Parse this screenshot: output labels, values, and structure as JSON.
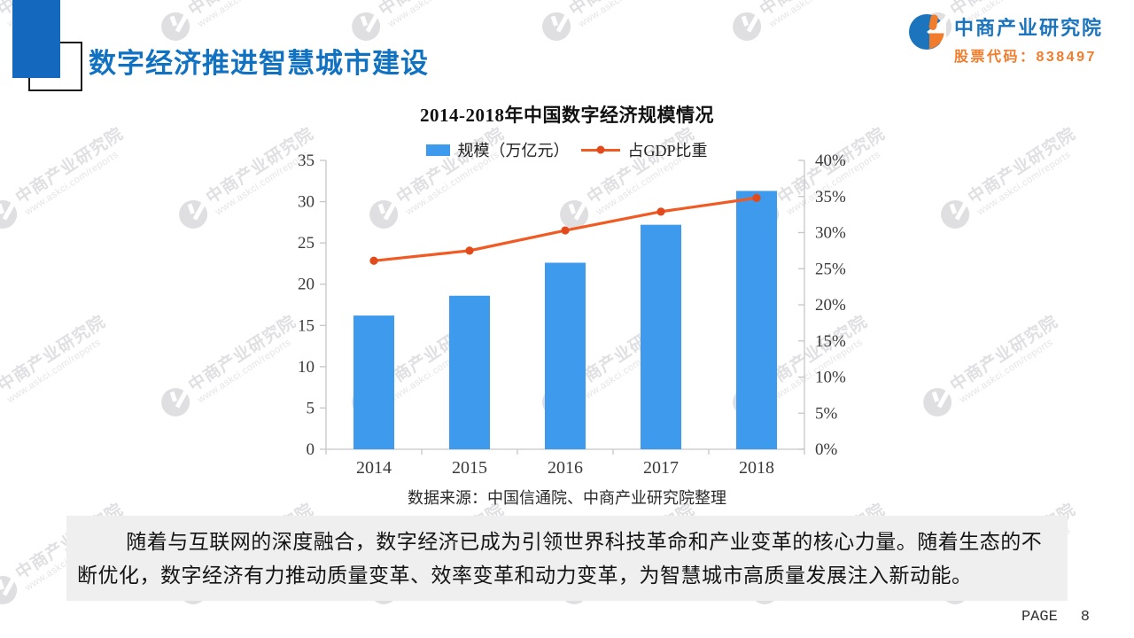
{
  "header": {
    "title": "数字经济推进智慧城市建设",
    "logo": {
      "company": "中商产业研究院",
      "stock_code": "股票代码：838497"
    }
  },
  "chart": {
    "source": "数据来源：中国信通院、中商产业研究院整理"
  },
  "chart_data": {
    "type": "bar",
    "title": "2014-2018年中国数字经济规模情况",
    "categories": [
      "2014",
      "2015",
      "2016",
      "2017",
      "2018"
    ],
    "series": [
      {
        "name": "规模（万亿元）",
        "type": "bar",
        "axis": "left",
        "color": "#3e9aec",
        "values": [
          16.2,
          18.6,
          22.6,
          27.2,
          31.3
        ]
      },
      {
        "name": "占GDP比重",
        "type": "line",
        "axis": "right",
        "color": "#f15a22",
        "dot_color": "#e2491b",
        "values": [
          26.1,
          27.5,
          30.3,
          32.9,
          34.8
        ]
      }
    ],
    "left_axis": {
      "min": 0,
      "max": 35,
      "step": 5,
      "suffix": ""
    },
    "right_axis": {
      "min": 0,
      "max": 40,
      "step": 5,
      "suffix": "%"
    },
    "grid": false,
    "legend_position": "top"
  },
  "body": {
    "paragraph": "随着与互联网的深度融合，数字经济已成为引领世界科技革命和产业变革的核心力量。随着生态的不断优化，数字经济有力推动质量变革、效率变革和动力变革，为智慧城市高质量发展注入新动能。"
  },
  "footer": {
    "page_label": "PAGE",
    "page_number": "8"
  },
  "watermark": {
    "text": "中商产业研究院",
    "url": "www.askci.com/reports"
  },
  "colors": {
    "title_blue": "#1272c2",
    "deco_blue": "#1468be",
    "bar_blue": "#3e9aec",
    "line_orange": "#f15a22",
    "logo_blue": "#1b74bc",
    "logo_orange": "#f07c2c",
    "box_gray": "#efefef"
  }
}
